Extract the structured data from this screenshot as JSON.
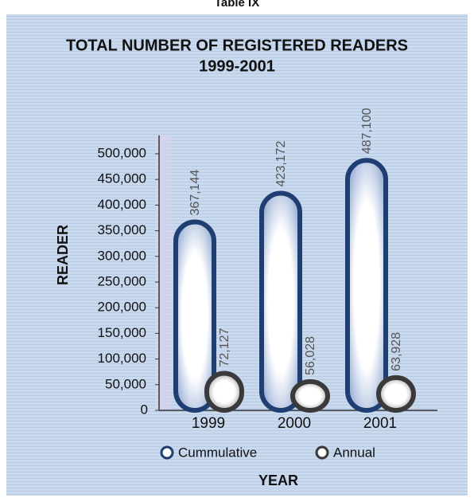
{
  "chart_data": {
    "type": "bar",
    "table_label": "Table IX",
    "title": "TOTAL NUMBER OF REGISTERED READERS",
    "subtitle": "1999-2001",
    "ylabel": "READER",
    "xlabel": "YEAR",
    "categories": [
      "1999",
      "2000",
      "2001"
    ],
    "series": [
      {
        "name": "Cummulative",
        "color": "#1f3f73",
        "values": [
          367144,
          423172,
          487100
        ],
        "value_labels": [
          "367,144",
          "423,172",
          "487,100"
        ]
      },
      {
        "name": "Annual",
        "color": "#3a3a3a",
        "values": [
          72127,
          56028,
          63928
        ],
        "value_labels": [
          "72,127",
          "56,028",
          "63,928"
        ]
      }
    ],
    "ylim": [
      0,
      500000
    ],
    "yticks": [
      0,
      {
        "value": 50000,
        "label": "50,000"
      },
      {
        "value": 100000,
        "label": "100,000"
      },
      {
        "value": 150000,
        "label": "150,000"
      },
      {
        "value": 200000,
        "label": "200,000"
      },
      {
        "value": 250000,
        "label": "250,000"
      },
      {
        "value": 300000,
        "label": "300,000"
      },
      {
        "value": 350000,
        "label": "350,000"
      },
      {
        "value": 400000,
        "label": "400,000"
      },
      {
        "value": 450000,
        "label": "450,000"
      },
      {
        "value": 500000,
        "label": "500,000"
      }
    ],
    "legend": "bottom"
  }
}
